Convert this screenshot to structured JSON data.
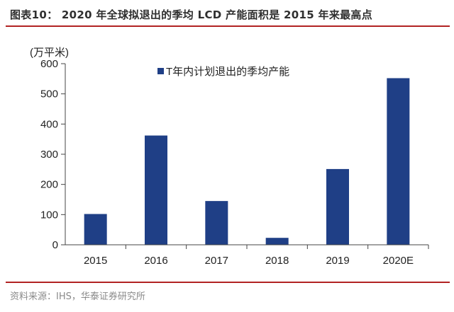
{
  "header": {
    "title": "图表10：  2020 年全球拟退出的季均 LCD 产能面积是 2015 年来最高点"
  },
  "footer": {
    "source": "资料来源：IHS，华泰证券研究所"
  },
  "colors": {
    "bar": "#1f3f86",
    "rule": "#b22222",
    "axis": "#444444"
  },
  "chart_data": {
    "type": "bar",
    "title": "",
    "ylabel": "(万平米)",
    "xlabel": "",
    "categories": [
      "2015",
      "2016",
      "2017",
      "2018",
      "2019",
      "2020E"
    ],
    "series": [
      {
        "name": "T年内计划退出的季均产能",
        "values": [
          102,
          362,
          145,
          23,
          251,
          552
        ]
      }
    ],
    "ylim": [
      0,
      600
    ],
    "yticks": [
      "0",
      "100",
      "200",
      "300",
      "400",
      "500",
      "600"
    ],
    "legend": "top-center",
    "grid": false
  }
}
